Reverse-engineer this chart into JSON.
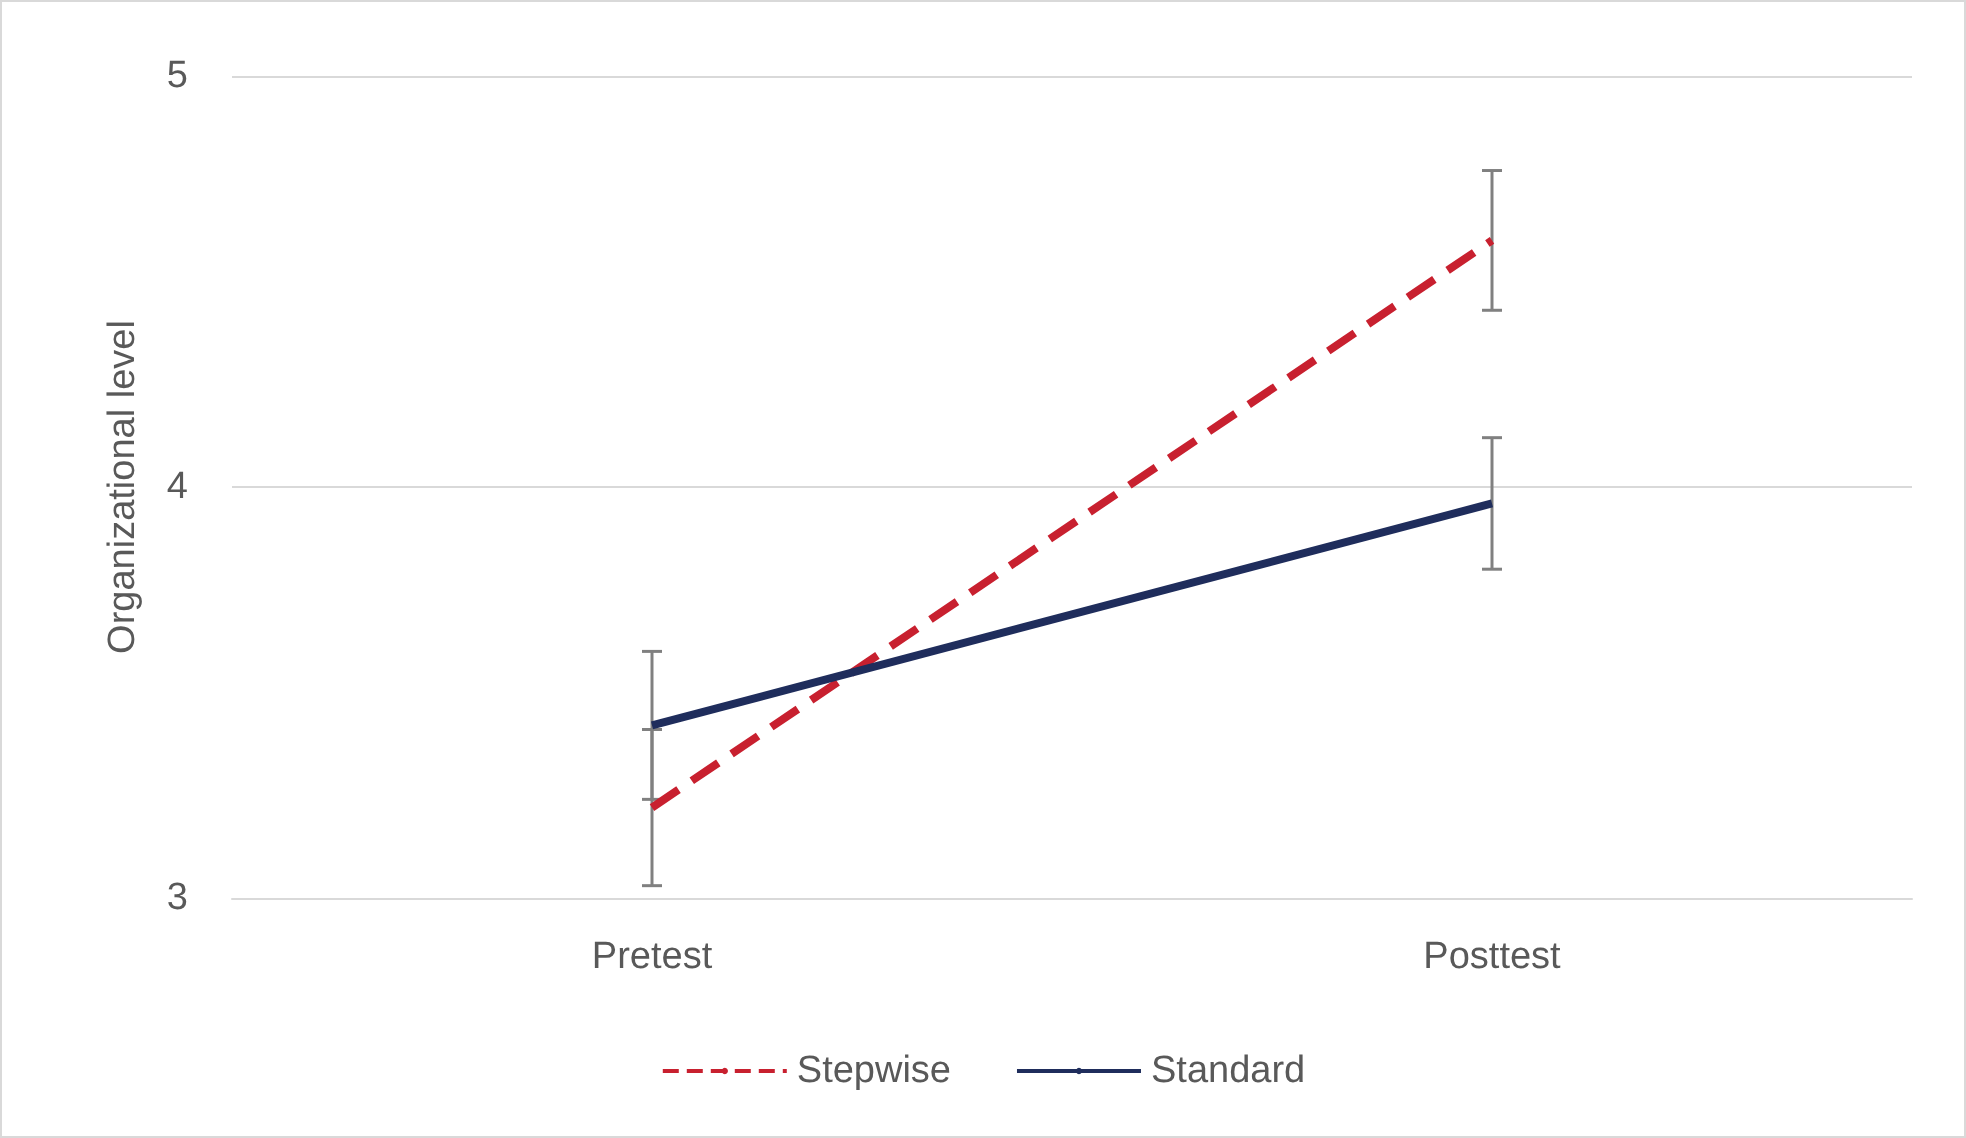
{
  "chart_data": {
    "type": "line",
    "ylabel": "Organizational level",
    "categories": [
      "Pretest",
      "Posttest"
    ],
    "series": [
      {
        "name": "Stepwise",
        "color": "#c8202f",
        "values": [
          3.22,
          4.6
        ],
        "errors": [
          0.19,
          0.17
        ],
        "line_style": "dashed"
      },
      {
        "name": "Standard",
        "color": "#1f2d5c",
        "values": [
          3.42,
          3.96
        ],
        "errors": [
          0.18,
          0.16
        ],
        "line_style": "solid"
      }
    ],
    "ylim": [
      3,
      5
    ],
    "yticks": [
      3,
      4,
      5
    ],
    "grid": "y",
    "legend": "bottom",
    "marker": "none"
  }
}
